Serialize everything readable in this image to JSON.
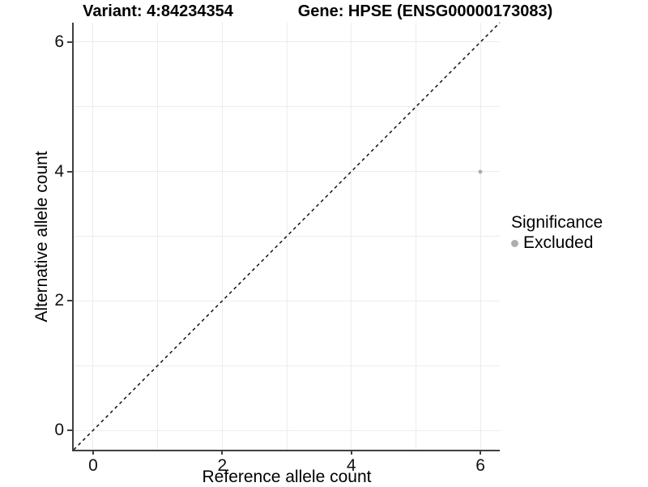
{
  "chart_data": {
    "type": "scatter",
    "title_left": "Variant: 4:84234354",
    "title_right": "Gene: HPSE (ENSG00000173083)",
    "xlabel": "Reference allele count",
    "ylabel": "Alternative allele count",
    "xlim": [
      -0.3,
      6.3
    ],
    "ylim": [
      -0.3,
      6.3
    ],
    "x_ticks": [
      0,
      2,
      4,
      6
    ],
    "y_ticks": [
      0,
      2,
      4,
      6
    ],
    "grid_positions": [
      0,
      1,
      2,
      3,
      4,
      5,
      6
    ],
    "grid": true,
    "points": [
      {
        "x": 6,
        "y": 4,
        "significance": "Excluded"
      }
    ],
    "reference_line": {
      "type": "identity",
      "style": "dashed",
      "from": [
        -0.3,
        -0.3
      ],
      "to": [
        6.3,
        6.3
      ]
    },
    "legend": {
      "position": "right",
      "title": "Significance",
      "items": [
        {
          "label": "Excluded",
          "color": "#aeaeae"
        }
      ]
    },
    "colors": {
      "point": "#aeaeae",
      "grid": "#ececec",
      "axis": "#404040",
      "dashed_line": "#111111",
      "text": "#000000"
    }
  }
}
